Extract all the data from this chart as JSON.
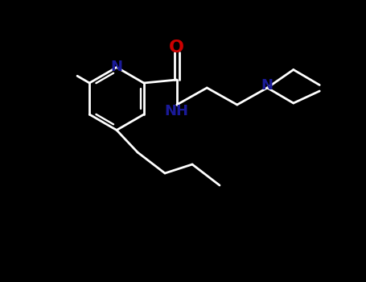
{
  "bg_color": "#000000",
  "bond_color": "#ffffff",
  "n_color": "#1a1a99",
  "o_color": "#cc0000",
  "lw": 2.0,
  "fs": 13,
  "figsize": [
    4.55,
    3.5
  ],
  "dpi": 100,
  "xlim": [
    0,
    9.1
  ],
  "ylim": [
    0,
    7.0
  ]
}
